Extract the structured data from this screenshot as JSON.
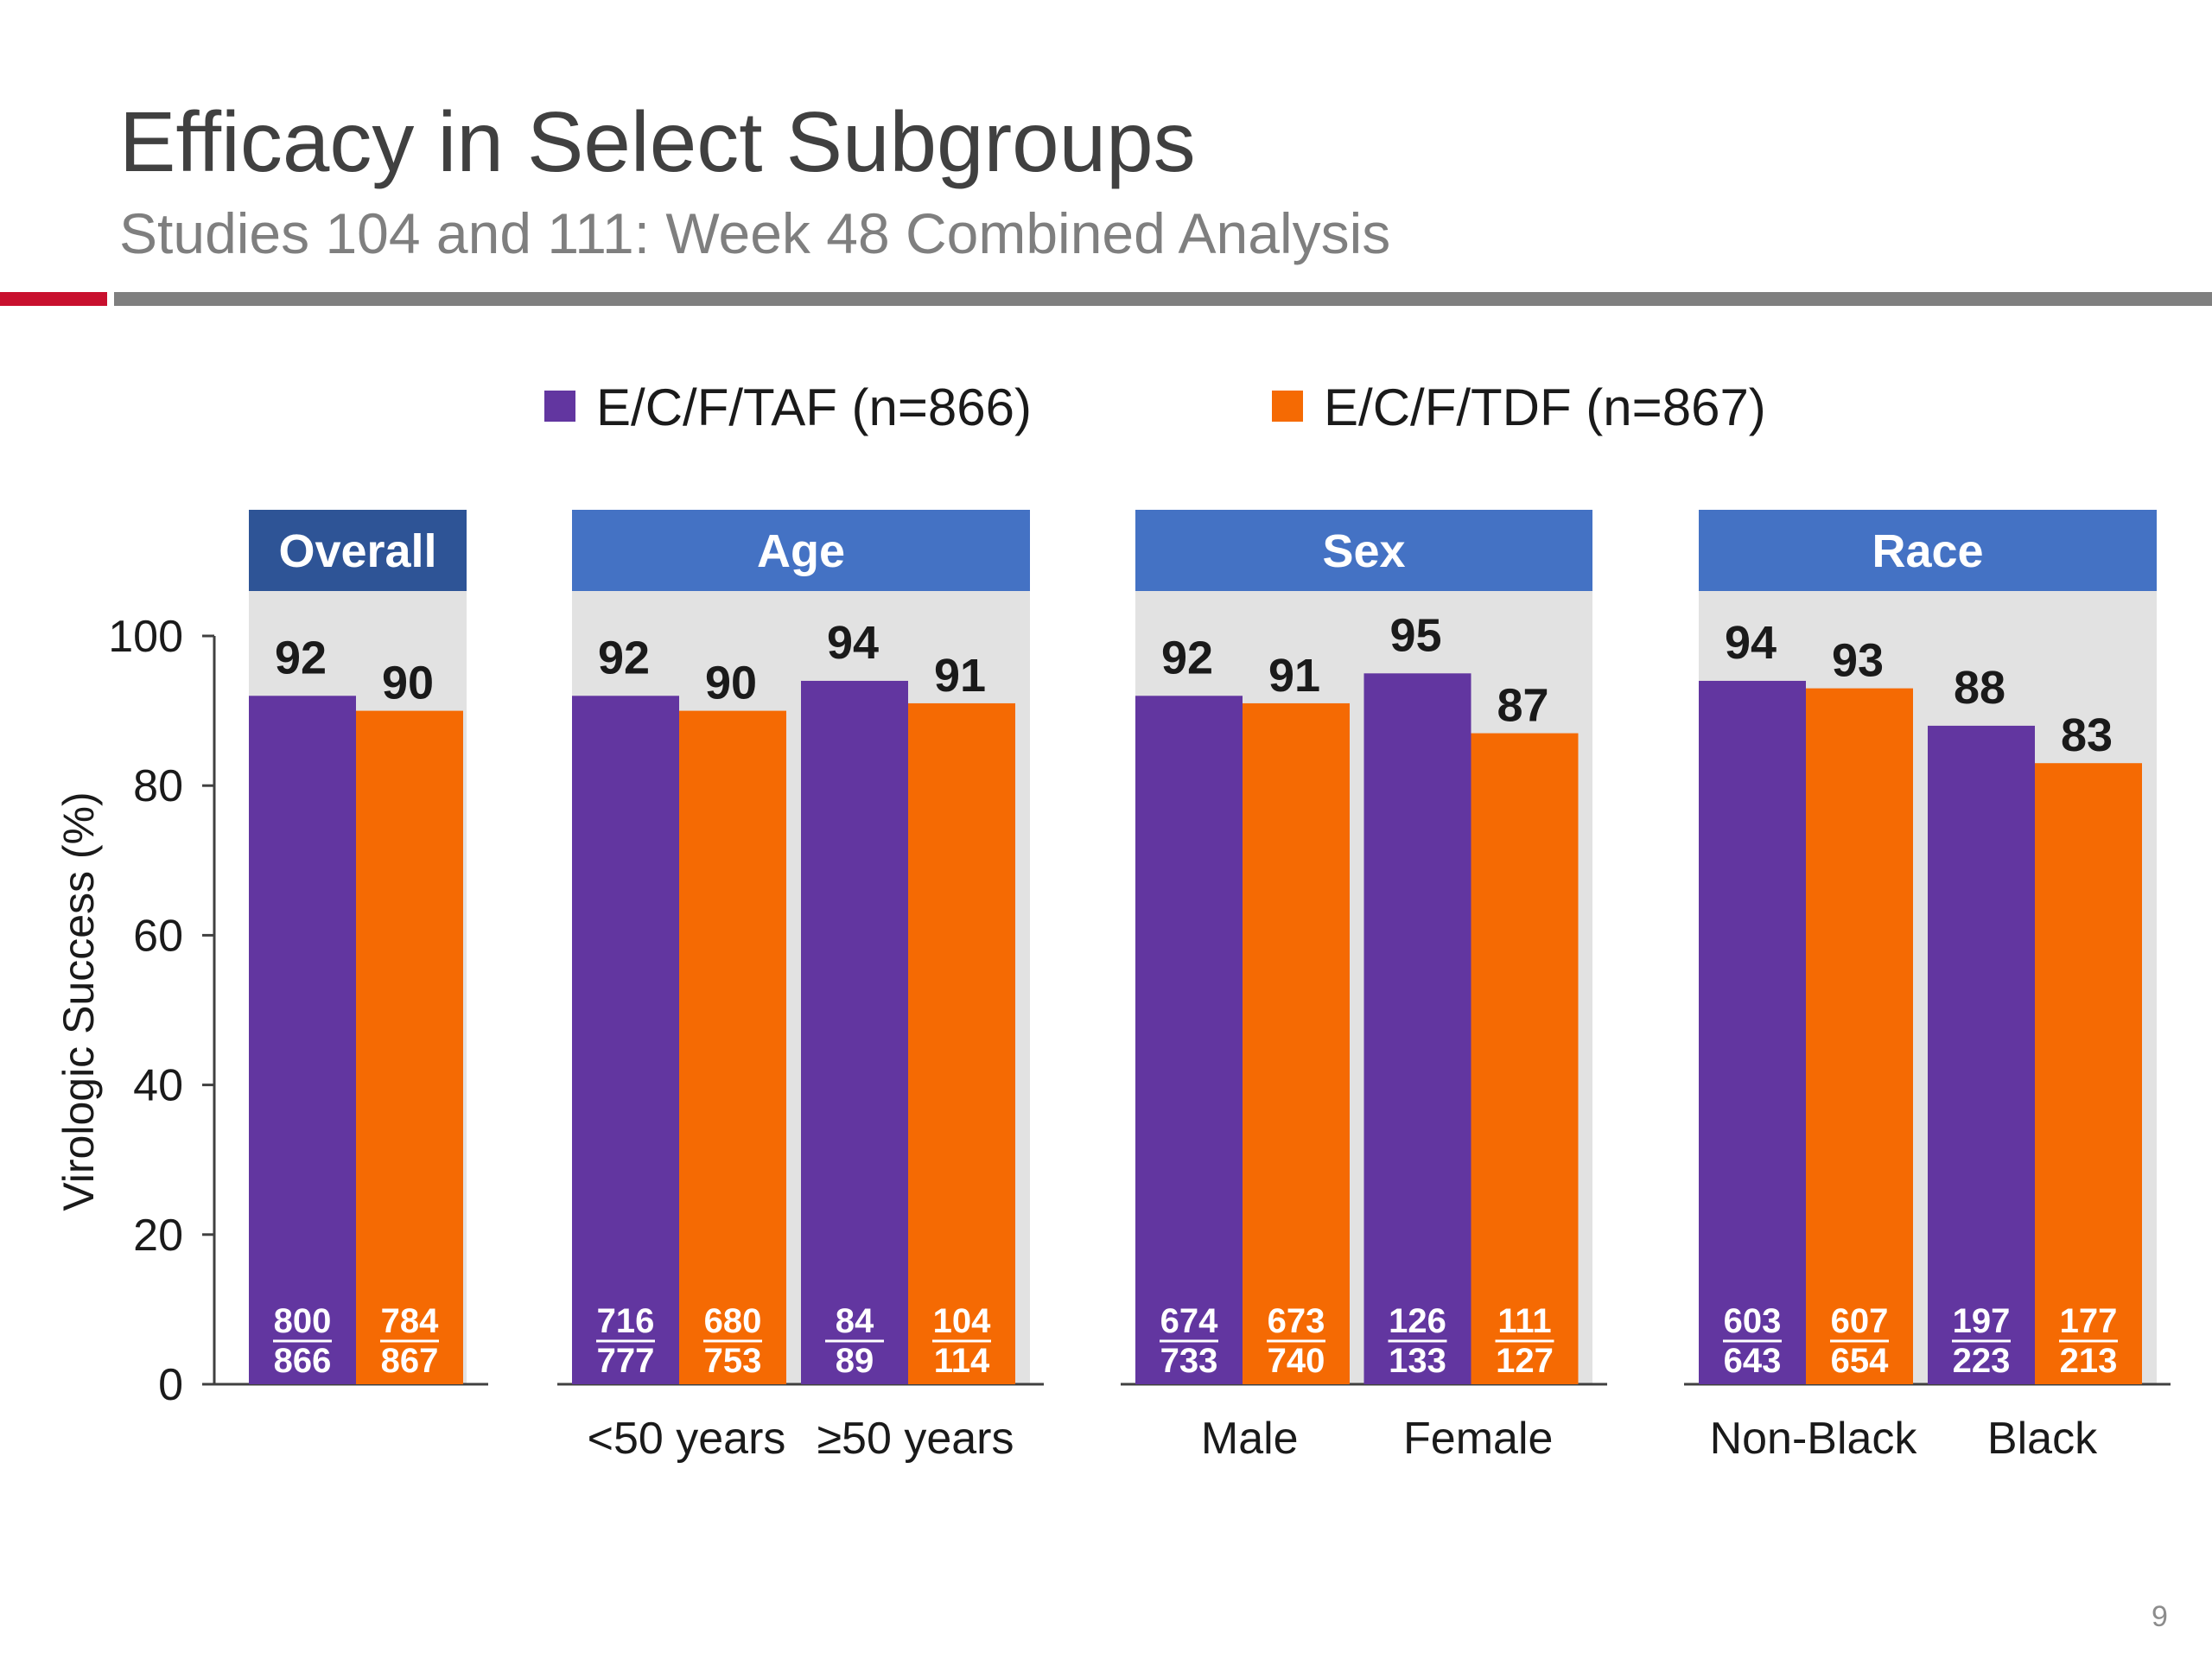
{
  "slide": {
    "title": "Efficacy in Select Subgroups",
    "subtitle": "Studies 104 and 111: Week 48 Combined Analysis",
    "page_number": "9"
  },
  "colors": {
    "taf": "#6236a0",
    "tdf": "#f56a03",
    "panel_bg": "#e2e2e2",
    "header_overall": "#2e5496",
    "header_group": "#4472c4",
    "title_text": "#404040",
    "accent_rule": "#c8102e"
  },
  "chart_data": {
    "type": "bar",
    "ylabel": "Virologic Success (%)",
    "ylim": [
      0,
      100
    ],
    "yticks": [
      0,
      20,
      40,
      60,
      80,
      100
    ],
    "legend_position": "top-center",
    "series": [
      {
        "name": "E/C/F/TAF (n=866)",
        "key": "taf"
      },
      {
        "name": "E/C/F/TDF (n=867)",
        "key": "tdf"
      }
    ],
    "panels": [
      {
        "header": "Overall",
        "categories": [
          {
            "label": "",
            "taf": {
              "value": 92,
              "num": "800",
              "den": "866"
            },
            "tdf": {
              "value": 90,
              "num": "784",
              "den": "867"
            }
          }
        ]
      },
      {
        "header": "Age",
        "categories": [
          {
            "label": "<50 years",
            "taf": {
              "value": 92,
              "num": "716",
              "den": "777"
            },
            "tdf": {
              "value": 90,
              "num": "680",
              "den": "753"
            }
          },
          {
            "label": "≥50 years",
            "taf": {
              "value": 94,
              "num": "84",
              "den": "89"
            },
            "tdf": {
              "value": 91,
              "num": "104",
              "den": "114"
            }
          }
        ]
      },
      {
        "header": "Sex",
        "categories": [
          {
            "label": "Male",
            "taf": {
              "value": 92,
              "num": "674",
              "den": "733"
            },
            "tdf": {
              "value": 91,
              "num": "673",
              "den": "740"
            }
          },
          {
            "label": "Female",
            "taf": {
              "value": 95,
              "num": "126",
              "den": "133"
            },
            "tdf": {
              "value": 87,
              "num": "111",
              "den": "127"
            }
          }
        ]
      },
      {
        "header": "Race",
        "categories": [
          {
            "label": "Non-Black",
            "taf": {
              "value": 94,
              "num": "603",
              "den": "643"
            },
            "tdf": {
              "value": 93,
              "num": "607",
              "den": "654"
            }
          },
          {
            "label": "Black",
            "taf": {
              "value": 88,
              "num": "197",
              "den": "223"
            },
            "tdf": {
              "value": 83,
              "num": "177",
              "den": "213"
            }
          }
        ]
      }
    ]
  }
}
